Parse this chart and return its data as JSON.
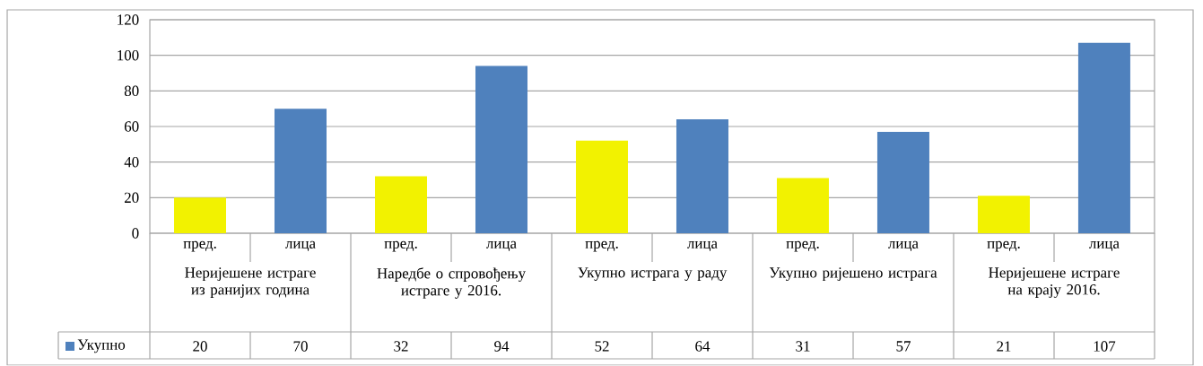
{
  "chart_data": {
    "type": "bar",
    "categories": [
      "пред.",
      "лица",
      "пред.",
      "лица",
      "пред.",
      "лица",
      "пред.",
      "лица",
      "пред.",
      "лица"
    ],
    "series": [
      {
        "name": "Укупно",
        "color": "#4f81bd",
        "colors": [
          "#f2f200",
          "#4f81bd",
          "#f2f200",
          "#4f81bd",
          "#f2f200",
          "#4f81bd",
          "#f2f200",
          "#4f81bd",
          "#f2f200",
          "#4f81bd"
        ],
        "values": [
          20,
          70,
          32,
          94,
          52,
          64,
          31,
          57,
          21,
          107
        ]
      }
    ],
    "annotations": [
      "Неријешене истраге из ранијих година",
      "Наредбе о спровођењу истраге у 2016.",
      "Укупно истрага у раду",
      "Укупно ријешено истрага",
      "Неријешене истраге на крају 2016."
    ],
    "ylim": [
      0,
      120
    ],
    "yticks": [
      0,
      20,
      40,
      60,
      80,
      100,
      120
    ],
    "grid": "y",
    "legend": "bottom",
    "data_labels": true
  }
}
